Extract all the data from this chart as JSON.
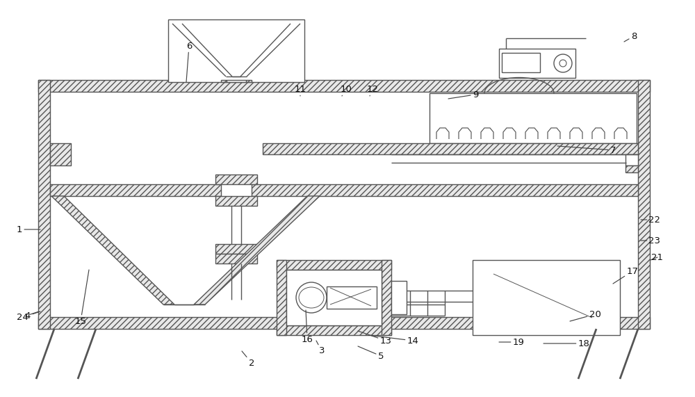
{
  "bg": "#ffffff",
  "lc": "#555555",
  "lw": 1.0,
  "hatch_lw": 0.5,
  "font_size": 9.5,
  "labels": [
    [
      "1",
      58,
      330,
      28,
      330
    ],
    [
      "2",
      348,
      505,
      362,
      522
    ],
    [
      "3",
      455,
      490,
      463,
      505
    ],
    [
      "4",
      58,
      448,
      40,
      454
    ],
    [
      "5",
      515,
      498,
      548,
      512
    ],
    [
      "6",
      268,
      118,
      272,
      66
    ],
    [
      "7",
      802,
      210,
      882,
      216
    ],
    [
      "8",
      898,
      60,
      912,
      52
    ],
    [
      "9",
      645,
      142,
      684,
      136
    ],
    [
      "10",
      492,
      138,
      498,
      128
    ],
    [
      "11",
      432,
      138,
      432,
      128
    ],
    [
      "12",
      532,
      138,
      536,
      128
    ],
    [
      "13",
      515,
      476,
      555,
      490
    ],
    [
      "14",
      530,
      482,
      594,
      490
    ],
    [
      "15",
      128,
      388,
      116,
      462
    ],
    [
      "16",
      440,
      446,
      442,
      488
    ],
    [
      "17",
      882,
      408,
      910,
      390
    ],
    [
      "18",
      782,
      494,
      840,
      494
    ],
    [
      "19",
      718,
      492,
      746,
      492
    ],
    [
      "20",
      820,
      462,
      856,
      452
    ],
    [
      "21",
      936,
      374,
      946,
      370
    ],
    [
      "22",
      922,
      316,
      942,
      316
    ],
    [
      "23",
      922,
      346,
      942,
      346
    ],
    [
      "24",
      56,
      448,
      32,
      456
    ]
  ]
}
